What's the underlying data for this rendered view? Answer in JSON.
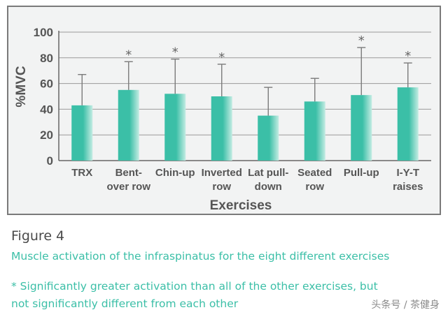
{
  "chart_data": {
    "type": "bar",
    "title": "",
    "xlabel": "Exercises",
    "ylabel": "%MVC",
    "ylim": [
      0,
      100
    ],
    "yticks": [
      "0",
      "20",
      "40",
      "60",
      "80",
      "100"
    ],
    "grid": true,
    "categories": [
      [
        "TRX"
      ],
      [
        "Bent-",
        "over row"
      ],
      [
        "Chin-up"
      ],
      [
        "Inverted",
        "row"
      ],
      [
        "Lat pull-",
        "down"
      ],
      [
        "Seated",
        "row"
      ],
      [
        "Pull-up"
      ],
      [
        "I-Y-T",
        "raises"
      ]
    ],
    "values": [
      43,
      55,
      52,
      50,
      35,
      46,
      51,
      57
    ],
    "error_upper": [
      67,
      77,
      79,
      75,
      57,
      64,
      88,
      76
    ],
    "significance": [
      "",
      "*",
      "*",
      "*",
      "",
      "",
      "*",
      "*"
    ],
    "bar_color": "#3bbfa7",
    "bar_light_color": "#c4ece3"
  },
  "caption": {
    "figure_label": "Figure 4",
    "description": "Muscle activation of the infraspinatus for the eight different exercises",
    "note_line1": "* Significantly greater activation than all of the other exercises, but",
    "note_line2": "not significantly different from each other"
  },
  "watermark": "头条号 / 茶健身"
}
